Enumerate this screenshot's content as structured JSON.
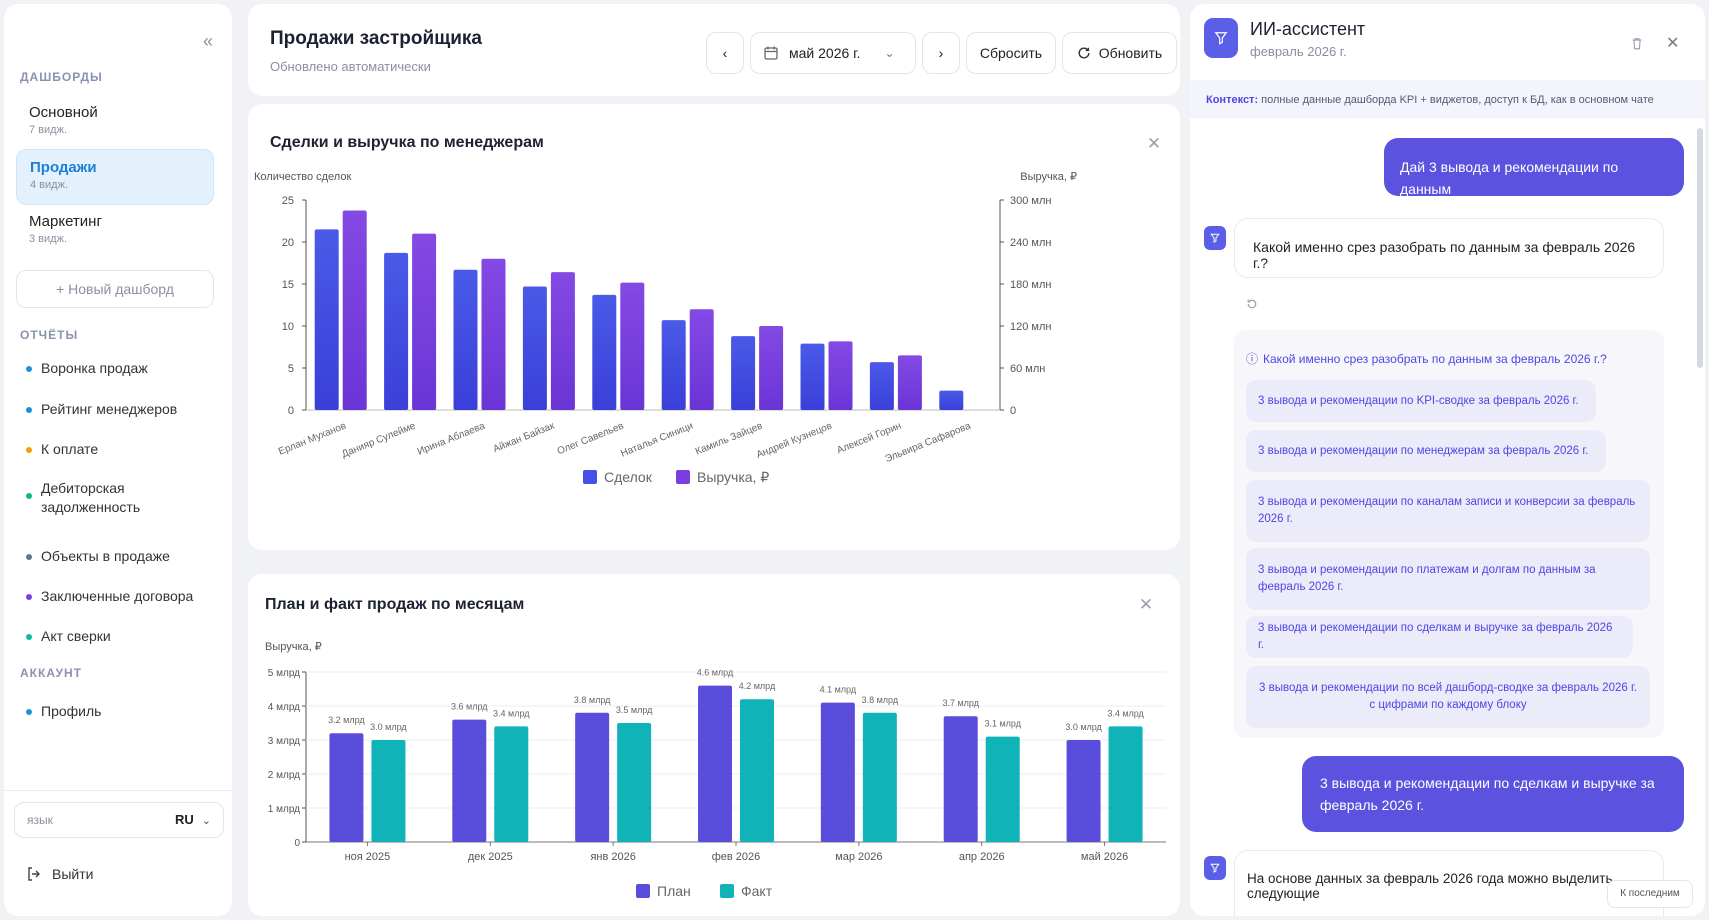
{
  "sidebar": {
    "sections": {
      "dashboards": "ДАШБОРДЫ",
      "reports": "ОТЧЁТЫ",
      "account": "АККАУНТ"
    },
    "dashboards": [
      {
        "name": "Основной",
        "count": "7 видж."
      },
      {
        "name": "Продажи",
        "count": "4 видж."
      },
      {
        "name": "Маркетинг",
        "count": "3 видж."
      }
    ],
    "new_dashboard": "+  Новый дашборд",
    "reports": [
      {
        "label": "Воронка продаж",
        "color": "#1e90d6"
      },
      {
        "label": "Рейтинг менеджеров",
        "color": "#1e90d6"
      },
      {
        "label": "К оплате",
        "color": "#f59e0b"
      },
      {
        "label": "Дебиторская задолженность",
        "color": "#10b981"
      },
      {
        "label": "Объекты в продаже",
        "color": "#64748b"
      },
      {
        "label": "Заключенные договора",
        "color": "#7c3aed"
      },
      {
        "label": "Акт сверки",
        "color": "#14b8a6"
      }
    ],
    "account": [
      {
        "label": "Профиль",
        "color": "#1e90d6"
      }
    ],
    "language_label": "язык",
    "language_value": "RU",
    "logout": "Выйти"
  },
  "header": {
    "title": "Продажи застройщика",
    "subtitle": "Обновлено автоматически",
    "period": "май 2026 г.",
    "reset": "Сбросить",
    "refresh": "Обновить"
  },
  "chart1": {
    "title": "Сделки и выручка по менеджерам",
    "ylabel_left": "Количество сделок",
    "ylabel_right": "Выручка, ₽",
    "legend": [
      "Сделок",
      "Выручка, ₽"
    ]
  },
  "chart2": {
    "title": "План и факт продаж по месяцам",
    "ylabel": "Выручка, ₽",
    "legend": [
      "План",
      "Факт"
    ]
  },
  "chart_data": [
    {
      "type": "bar",
      "title": "Сделки и выручка по менеджерам",
      "categories": [
        "Ерлан Муханов",
        "Данияр Сулейме",
        "Ирина Аблаева",
        "Айжан Байзак",
        "Олег Савельев",
        "Наталья Синици",
        "Камиль Зайцев",
        "Андрей Кузнецов",
        "Алексей Горин",
        "Эльвира Сафарова"
      ],
      "series": [
        {
          "name": "Сделок",
          "axis": "left",
          "color": "#4f46e5",
          "values": [
            21.5,
            18.7,
            16.7,
            14.7,
            13.7,
            10.7,
            8.8,
            7.9,
            5.7,
            2.3
          ]
        },
        {
          "name": "Выручка, ₽",
          "axis": "right",
          "color": "#7c3aed",
          "values": [
            285,
            252,
            216,
            197,
            182,
            144,
            120,
            98,
            78,
            0
          ]
        }
      ],
      "y_left": {
        "label": "Количество сделок",
        "ticks": [
          "0",
          "5",
          "10",
          "15",
          "20",
          "25"
        ],
        "lim": [
          0,
          25
        ]
      },
      "y_right": {
        "label": "Выручка, ₽",
        "ticks": [
          "0",
          "60 млн",
          "120 млн",
          "180 млн",
          "240 млн",
          "300 млн"
        ],
        "lim": [
          0,
          300
        ]
      },
      "legend_position": "bottom"
    },
    {
      "type": "bar",
      "title": "План и факт продаж по месяцам",
      "categories": [
        "ноя 2025",
        "дек 2025",
        "янв 2026",
        "фев 2026",
        "мар 2026",
        "апр 2026",
        "май 2026"
      ],
      "series": [
        {
          "name": "План",
          "color": "#5b4ddb",
          "values": [
            3.2,
            3.6,
            3.8,
            4.6,
            4.1,
            3.7,
            3.0
          ],
          "labels": [
            "3.2 млрд",
            "3.6 млрд",
            "3.8 млрд",
            "4.6 млрд",
            "4.1 млрд",
            "3.7 млрд",
            "3.0 млрд"
          ]
        },
        {
          "name": "Факт",
          "color": "#0fb3b8",
          "values": [
            3.0,
            3.4,
            3.5,
            4.2,
            3.8,
            3.1,
            3.4
          ],
          "labels": [
            "3.0 млрд",
            "3.4 млрд",
            "3.5 млрд",
            "4.2 млрд",
            "3.8 млрд",
            "3.1 млрд",
            "3.4 млрд"
          ]
        }
      ],
      "y": {
        "label": "Выручка, ₽",
        "ticks": [
          "0",
          "1 млрд",
          "2 млрд",
          "3 млрд",
          "4 млрд",
          "5 млрд"
        ],
        "lim": [
          0,
          5
        ]
      },
      "legend_position": "bottom"
    }
  ],
  "assistant": {
    "title": "ИИ-ассистент",
    "subtitle": "февраль 2026 г.",
    "context_label": "Контекст:",
    "context_text": " полные данные дашборда KPI + виджетов, доступ к БД, как в основном чате",
    "msg1": "Дай 3 вывода и рекомендации по данным",
    "reply1": "Какой именно срез разобрать по данным за февраль 2026 г.?",
    "suggest_title": "Какой именно срез разобрать по данным за февраль 2026 г.?",
    "suggestions": [
      "3 вывода и рекомендации по KPI-сводке за февраль 2026 г.",
      "3 вывода и рекомендации по менеджерам за февраль 2026 г.",
      "3 вывода и рекомендации по каналам записи и конверсии за февраль 2026 г.",
      "3 вывода и рекомендации по платежам и долгам по данным за февраль 2026 г.",
      "3 вывода и рекомендации по сделкам и выручке за февраль 2026 г.",
      "3 вывода и рекомендации по всей дашборд-сводке за февраль 2026 г. с цифрами по каждому блоку"
    ],
    "msg2": "3 вывода и рекомендации по сделкам и выручке за февраль 2026 г.",
    "reply2": "На основе данных за февраль 2026 года можно выделить следующие",
    "to_last": "К последним"
  }
}
